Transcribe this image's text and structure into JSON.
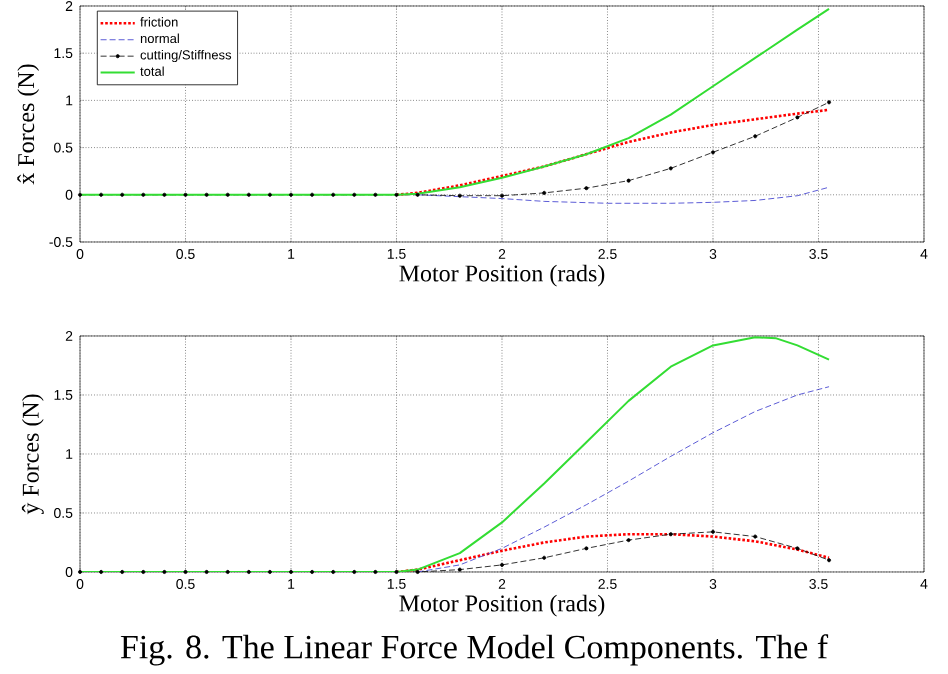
{
  "chart_data": [
    {
      "type": "line",
      "xlabel": "Motor Position (rads)",
      "ylabel": "x̂ Forces (N)",
      "xlim": [
        0,
        4
      ],
      "ylim": [
        -0.5,
        2
      ],
      "xticks": [
        0,
        0.5,
        1,
        1.5,
        2,
        2.5,
        3,
        3.5,
        4
      ],
      "yticks": [
        -0.5,
        0,
        0.5,
        1,
        1.5,
        2
      ],
      "grid": true,
      "legend": "top left",
      "series": [
        {
          "name": "friction",
          "color": "#ff0000",
          "line_style": "dotted",
          "marker": "none",
          "x": [
            1.5,
            1.6,
            1.8,
            2.0,
            2.2,
            2.4,
            2.6,
            2.8,
            3.0,
            3.2,
            3.4,
            3.55
          ],
          "values": [
            0,
            0.02,
            0.1,
            0.2,
            0.3,
            0.43,
            0.56,
            0.66,
            0.74,
            0.8,
            0.86,
            0.9
          ]
        },
        {
          "name": "normal",
          "color": "#3333cc",
          "line_style": "dashed",
          "marker": "none",
          "x": [
            1.6,
            1.8,
            2.0,
            2.2,
            2.5,
            2.8,
            3.0,
            3.2,
            3.4,
            3.55
          ],
          "values": [
            0,
            -0.02,
            -0.04,
            -0.07,
            -0.09,
            -0.09,
            -0.08,
            -0.06,
            -0.01,
            0.08
          ]
        },
        {
          "name": "cutting/Stiffness",
          "color": "#000000",
          "line_style": "dashed",
          "marker": "circle",
          "x": [
            0,
            0.1,
            0.2,
            0.3,
            0.4,
            0.5,
            0.6,
            0.7,
            0.8,
            0.9,
            1.0,
            1.1,
            1.2,
            1.3,
            1.4,
            1.5,
            1.6,
            1.8,
            2.0,
            2.2,
            2.4,
            2.6,
            2.8,
            3.0,
            3.2,
            3.4,
            3.55
          ],
          "values": [
            0,
            0,
            0,
            0,
            0,
            0,
            0,
            0,
            0,
            0,
            0,
            0,
            0,
            0,
            0,
            0,
            0,
            -0.01,
            -0.01,
            0.02,
            0.07,
            0.15,
            0.28,
            0.45,
            0.62,
            0.82,
            0.98
          ]
        },
        {
          "name": "total",
          "color": "#33dd33",
          "line_style": "solid",
          "marker": "none",
          "x": [
            0,
            0.5,
            1.0,
            1.5,
            1.6,
            1.8,
            2.0,
            2.2,
            2.4,
            2.6,
            2.8,
            3.0,
            3.2,
            3.4,
            3.55
          ],
          "values": [
            0,
            0,
            0,
            0,
            0.01,
            0.08,
            0.18,
            0.3,
            0.43,
            0.6,
            0.85,
            1.15,
            1.45,
            1.75,
            1.97
          ]
        }
      ]
    },
    {
      "type": "line",
      "xlabel": "Motor Position (rads)",
      "ylabel": "ŷ Forces (N)",
      "xlim": [
        0,
        4
      ],
      "ylim": [
        0,
        2
      ],
      "xticks": [
        0,
        0.5,
        1,
        1.5,
        2,
        2.5,
        3,
        3.5,
        4
      ],
      "yticks": [
        0,
        0.5,
        1,
        1.5,
        2
      ],
      "grid": true,
      "annotations": [
        "Fig. 8. The Linear Force Model Components. The f"
      ],
      "series": [
        {
          "color": "#ff0000",
          "line_style": "dotted",
          "marker": "none",
          "x": [
            1.5,
            1.6,
            1.8,
            2.0,
            2.2,
            2.4,
            2.6,
            2.8,
            3.0,
            3.2,
            3.4,
            3.55
          ],
          "values": [
            0,
            0.02,
            0.1,
            0.18,
            0.25,
            0.3,
            0.32,
            0.32,
            0.3,
            0.26,
            0.19,
            0.12
          ]
        },
        {
          "color": "#3333cc",
          "line_style": "dashed",
          "marker": "none",
          "x": [
            1.6,
            1.8,
            2.0,
            2.2,
            2.4,
            2.6,
            2.8,
            3.0,
            3.2,
            3.4,
            3.55
          ],
          "values": [
            0,
            0.06,
            0.2,
            0.38,
            0.57,
            0.77,
            0.98,
            1.18,
            1.36,
            1.5,
            1.57
          ]
        },
        {
          "color": "#000000",
          "line_style": "dashed",
          "marker": "circle",
          "x": [
            0,
            0.1,
            0.2,
            0.3,
            0.4,
            0.5,
            0.6,
            0.7,
            0.8,
            0.9,
            1.0,
            1.1,
            1.2,
            1.3,
            1.4,
            1.5,
            1.6,
            1.8,
            2.0,
            2.2,
            2.4,
            2.6,
            2.8,
            3.0,
            3.2,
            3.4,
            3.55
          ],
          "values": [
            0,
            0,
            0,
            0,
            0,
            0,
            0,
            0,
            0,
            0,
            0,
            0,
            0,
            0,
            0,
            0,
            0,
            0.02,
            0.06,
            0.12,
            0.2,
            0.27,
            0.32,
            0.34,
            0.3,
            0.2,
            0.1
          ]
        },
        {
          "color": "#33dd33",
          "line_style": "solid",
          "marker": "none",
          "x": [
            0,
            0.5,
            1.0,
            1.5,
            1.6,
            1.8,
            2.0,
            2.2,
            2.4,
            2.6,
            2.8,
            3.0,
            3.2,
            3.3,
            3.4,
            3.55
          ],
          "values": [
            0,
            0,
            0,
            0,
            0.02,
            0.16,
            0.42,
            0.75,
            1.1,
            1.45,
            1.74,
            1.92,
            1.99,
            1.98,
            1.92,
            1.8
          ]
        }
      ]
    }
  ]
}
